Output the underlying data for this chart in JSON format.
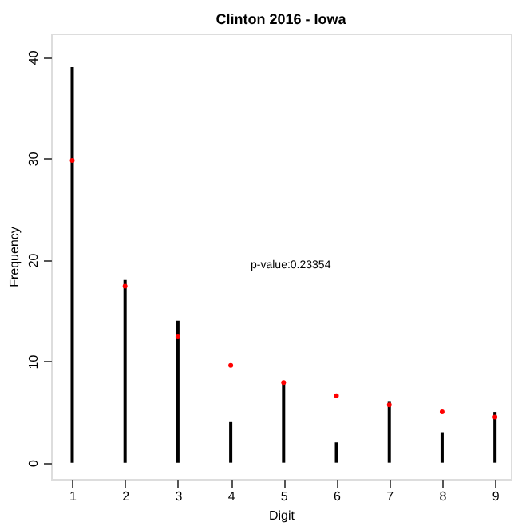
{
  "chart_data": {
    "type": "bar",
    "title": "Clinton 2016 - Iowa",
    "xlabel": "Digit",
    "ylabel": "Frequency",
    "x": [
      1,
      2,
      3,
      4,
      5,
      6,
      7,
      8,
      9
    ],
    "series": [
      {
        "color": "#000000",
        "values": [
          39,
          18,
          14,
          4,
          8,
          2,
          6,
          3,
          5
        ]
      },
      {
        "type": "scatter",
        "color": "#ff0000",
        "marker": "circle",
        "values": [
          29.8,
          17.4,
          12.4,
          9.6,
          7.9,
          6.6,
          5.7,
          5.0,
          4.5
        ]
      }
    ],
    "xlim": [
      0.6,
      9.3
    ],
    "xticks": [
      1,
      2,
      3,
      4,
      5,
      6,
      7,
      8,
      9
    ],
    "ylim": [
      -1.6,
      42.3
    ],
    "yticks": [
      0,
      10,
      20,
      30,
      40
    ],
    "annotations": [
      "p-value:0.23354"
    ]
  }
}
